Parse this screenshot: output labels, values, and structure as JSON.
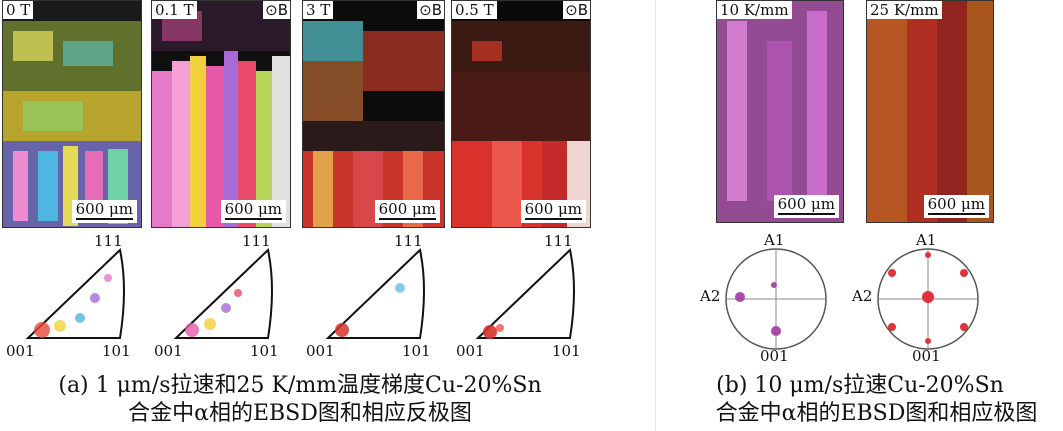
{
  "panel_a": {
    "maps": [
      {
        "field": "0 T",
        "show_b": false,
        "scale": "600 μm"
      },
      {
        "field": "0.1 T",
        "show_b": true,
        "scale": "600 μm"
      },
      {
        "field": "3 T",
        "show_b": true,
        "scale": "600 μm"
      },
      {
        "field": "0.5 T",
        "show_b": true,
        "scale": "600 μm"
      }
    ],
    "b_symbol": "⊙B",
    "ipf_labels": {
      "top": "111",
      "left": "001",
      "right": "101"
    },
    "caption_line1": "(a) 1 μm/s拉速和25 K/mm温度梯度Cu-20%Sn",
    "caption_line2": "合金中α相的EBSD图和相应反极图"
  },
  "panel_b": {
    "maps": [
      {
        "gradient": "10 K/mm",
        "scale": "600 μm"
      },
      {
        "gradient": "25 K/mm",
        "scale": "600 μm"
      }
    ],
    "pole_labels": {
      "top": "A1",
      "left": "A2",
      "bottom": "001"
    },
    "caption_line1": "(b) 10 μm/s拉速Cu-20%Sn",
    "caption_line2": "合金中α相的EBSD图和相应极图"
  }
}
